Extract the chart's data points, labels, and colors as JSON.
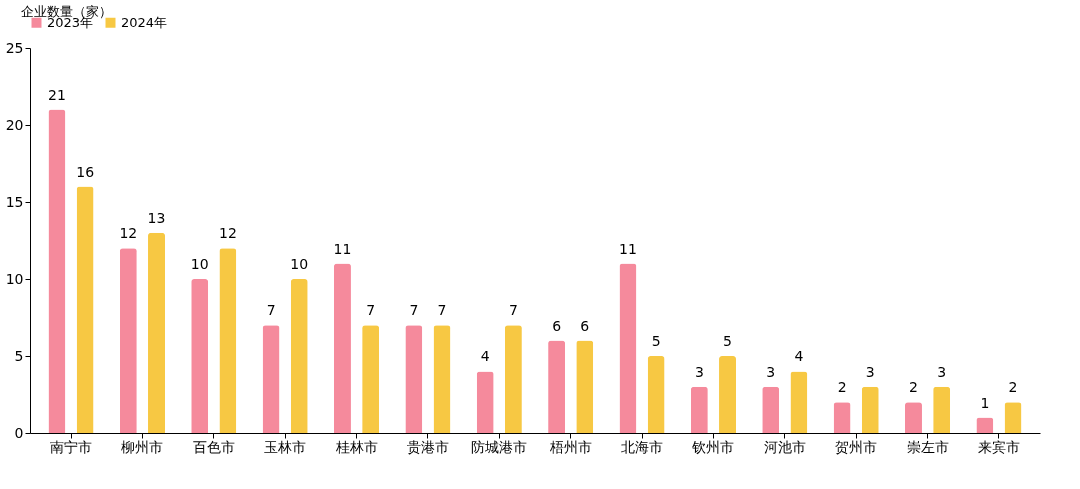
{
  "chart_data": {
    "type": "bar",
    "ylabel": "企业数量（家）",
    "categories": [
      "南宁市",
      "柳州市",
      "百色市",
      "玉林市",
      "桂林市",
      "贵港市",
      "防城港市",
      "梧州市",
      "北海市",
      "钦州市",
      "河池市",
      "贺州市",
      "崇左市",
      "来宾市"
    ],
    "series": [
      {
        "name": "2023年",
        "color": "#f58a9c",
        "values": [
          21,
          12,
          10,
          7,
          11,
          7,
          4,
          6,
          11,
          3,
          3,
          2,
          2,
          1
        ]
      },
      {
        "name": "2024年",
        "color": "#f7c843",
        "values": [
          16,
          13,
          12,
          10,
          7,
          7,
          7,
          6,
          5,
          5,
          4,
          3,
          3,
          2
        ]
      }
    ],
    "ylim": [
      0,
      25
    ],
    "yticks": [
      0,
      5,
      10,
      15,
      20,
      25
    ],
    "grid": false,
    "legend": "top",
    "data_labels": true
  }
}
